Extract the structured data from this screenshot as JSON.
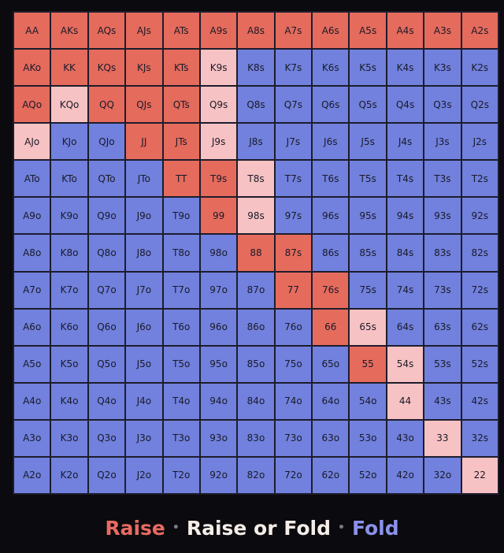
{
  "colors": {
    "raise": "#e56b5d",
    "raise_or_fold": "#f7c2c3",
    "fold": "#7181dd"
  },
  "legend": {
    "raise": "Raise",
    "raise_or_fold": "Raise or Fold",
    "fold": "Fold",
    "separator": "•"
  },
  "grid": {
    "rows": [
      [
        "AA",
        "AKs",
        "AQs",
        "AJs",
        "ATs",
        "A9s",
        "A8s",
        "A7s",
        "A6s",
        "A5s",
        "A4s",
        "A3s",
        "A2s"
      ],
      [
        "AKo",
        "KK",
        "KQs",
        "KJs",
        "KTs",
        "K9s",
        "K8s",
        "K7s",
        "K6s",
        "K5s",
        "K4s",
        "K3s",
        "K2s"
      ],
      [
        "AQo",
        "KQo",
        "QQ",
        "QJs",
        "QTs",
        "Q9s",
        "Q8s",
        "Q7s",
        "Q6s",
        "Q5s",
        "Q4s",
        "Q3s",
        "Q2s"
      ],
      [
        "AJo",
        "KJo",
        "QJo",
        "JJ",
        "JTs",
        "J9s",
        "J8s",
        "J7s",
        "J6s",
        "J5s",
        "J4s",
        "J3s",
        "J2s"
      ],
      [
        "ATo",
        "KTo",
        "QTo",
        "JTo",
        "TT",
        "T9s",
        "T8s",
        "T7s",
        "T6s",
        "T5s",
        "T4s",
        "T3s",
        "T2s"
      ],
      [
        "A9o",
        "K9o",
        "Q9o",
        "J9o",
        "T9o",
        "99",
        "98s",
        "97s",
        "96s",
        "95s",
        "94s",
        "93s",
        "92s"
      ],
      [
        "A8o",
        "K8o",
        "Q8o",
        "J8o",
        "T8o",
        "98o",
        "88",
        "87s",
        "86s",
        "85s",
        "84s",
        "83s",
        "82s"
      ],
      [
        "A7o",
        "K7o",
        "Q7o",
        "J7o",
        "T7o",
        "97o",
        "87o",
        "77",
        "76s",
        "75s",
        "74s",
        "73s",
        "72s"
      ],
      [
        "A6o",
        "K6o",
        "Q6o",
        "J6o",
        "T6o",
        "96o",
        "86o",
        "76o",
        "66",
        "65s",
        "64s",
        "63s",
        "62s"
      ],
      [
        "A5o",
        "K5o",
        "Q5o",
        "J5o",
        "T5o",
        "95o",
        "85o",
        "75o",
        "65o",
        "55",
        "54s",
        "53s",
        "52s"
      ],
      [
        "A4o",
        "K4o",
        "Q4o",
        "J4o",
        "T4o",
        "94o",
        "84o",
        "74o",
        "64o",
        "54o",
        "44",
        "43s",
        "42s"
      ],
      [
        "A3o",
        "K3o",
        "Q3o",
        "J3o",
        "T3o",
        "93o",
        "83o",
        "73o",
        "63o",
        "53o",
        "43o",
        "33",
        "32s"
      ],
      [
        "A2o",
        "K2o",
        "Q2o",
        "J2o",
        "T2o",
        "92o",
        "82o",
        "72o",
        "62o",
        "52o",
        "42o",
        "32o",
        "22"
      ]
    ],
    "actions": [
      [
        "raise",
        "raise",
        "raise",
        "raise",
        "raise",
        "raise",
        "raise",
        "raise",
        "raise",
        "raise",
        "raise",
        "raise",
        "raise"
      ],
      [
        "raise",
        "raise",
        "raise",
        "raise",
        "raise",
        "raise_or_fold",
        "fold",
        "fold",
        "fold",
        "fold",
        "fold",
        "fold",
        "fold"
      ],
      [
        "raise",
        "raise_or_fold",
        "raise",
        "raise",
        "raise",
        "raise_or_fold",
        "fold",
        "fold",
        "fold",
        "fold",
        "fold",
        "fold",
        "fold"
      ],
      [
        "raise_or_fold",
        "fold",
        "fold",
        "raise",
        "raise",
        "raise_or_fold",
        "fold",
        "fold",
        "fold",
        "fold",
        "fold",
        "fold",
        "fold"
      ],
      [
        "fold",
        "fold",
        "fold",
        "fold",
        "raise",
        "raise",
        "raise_or_fold",
        "fold",
        "fold",
        "fold",
        "fold",
        "fold",
        "fold"
      ],
      [
        "fold",
        "fold",
        "fold",
        "fold",
        "fold",
        "raise",
        "raise_or_fold",
        "fold",
        "fold",
        "fold",
        "fold",
        "fold",
        "fold"
      ],
      [
        "fold",
        "fold",
        "fold",
        "fold",
        "fold",
        "fold",
        "raise",
        "raise",
        "fold",
        "fold",
        "fold",
        "fold",
        "fold"
      ],
      [
        "fold",
        "fold",
        "fold",
        "fold",
        "fold",
        "fold",
        "fold",
        "raise",
        "raise",
        "fold",
        "fold",
        "fold",
        "fold"
      ],
      [
        "fold",
        "fold",
        "fold",
        "fold",
        "fold",
        "fold",
        "fold",
        "fold",
        "raise",
        "raise_or_fold",
        "fold",
        "fold",
        "fold"
      ],
      [
        "fold",
        "fold",
        "fold",
        "fold",
        "fold",
        "fold",
        "fold",
        "fold",
        "fold",
        "raise",
        "raise_or_fold",
        "fold",
        "fold"
      ],
      [
        "fold",
        "fold",
        "fold",
        "fold",
        "fold",
        "fold",
        "fold",
        "fold",
        "fold",
        "fold",
        "raise_or_fold",
        "fold",
        "fold"
      ],
      [
        "fold",
        "fold",
        "fold",
        "fold",
        "fold",
        "fold",
        "fold",
        "fold",
        "fold",
        "fold",
        "fold",
        "raise_or_fold",
        "fold"
      ],
      [
        "fold",
        "fold",
        "fold",
        "fold",
        "fold",
        "fold",
        "fold",
        "fold",
        "fold",
        "fold",
        "fold",
        "fold",
        "raise_or_fold"
      ]
    ]
  }
}
